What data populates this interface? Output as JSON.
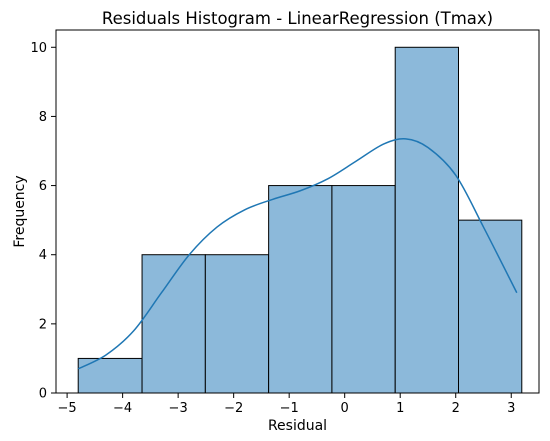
{
  "chart_data": {
    "type": "bar",
    "subtype": "histogram",
    "title": "Residuals Histogram - LinearRegression (Tmax)",
    "xlabel": "Residual",
    "ylabel": "Frequency",
    "bins": [
      {
        "start": -4.8,
        "end": -3.65,
        "count": 1
      },
      {
        "start": -3.65,
        "end": -2.51,
        "count": 4
      },
      {
        "start": -2.51,
        "end": -1.37,
        "count": 4
      },
      {
        "start": -1.37,
        "end": -0.23,
        "count": 6
      },
      {
        "start": -0.23,
        "end": 0.91,
        "count": 6
      },
      {
        "start": 0.91,
        "end": 2.05,
        "count": 10
      },
      {
        "start": 2.05,
        "end": 3.19,
        "count": 5
      }
    ],
    "kde": {
      "x": [
        -4.8,
        -4.3,
        -3.8,
        -3.3,
        -2.8,
        -2.3,
        -1.8,
        -1.3,
        -0.8,
        -0.3,
        0.2,
        0.7,
        1.1,
        1.5,
        2.0,
        2.5,
        3.1
      ],
      "y": [
        0.7,
        1.1,
        1.8,
        2.9,
        4.0,
        4.8,
        5.3,
        5.6,
        5.85,
        6.2,
        6.7,
        7.2,
        7.35,
        7.1,
        6.3,
        4.8,
        2.9
      ]
    },
    "xticks": [
      -5,
      -4,
      -3,
      -2,
      -1,
      0,
      1,
      2,
      3
    ],
    "yticks": [
      0,
      2,
      4,
      6,
      8,
      10
    ],
    "xlim": [
      -5.2,
      3.5
    ],
    "ylim": [
      0,
      10.5
    ],
    "grid": false,
    "colors": {
      "bar_fill": "#8cb9da",
      "bar_edge": "#000000",
      "kde_line": "#1f77b4"
    }
  }
}
